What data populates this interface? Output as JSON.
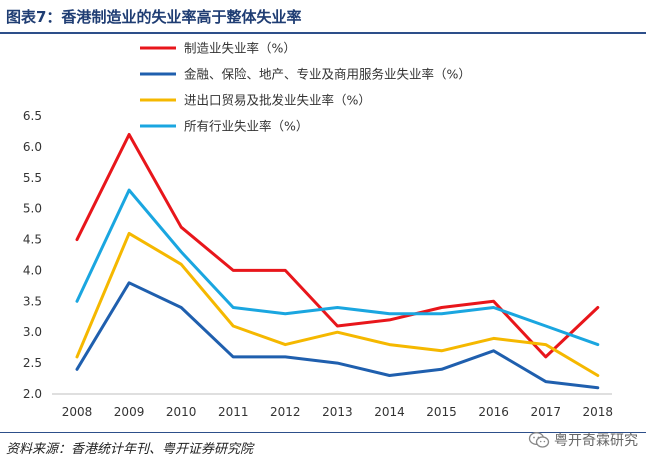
{
  "header": {
    "title": "图表7：香港制造业的失业率高于整体失业率"
  },
  "footer": {
    "source": "资料来源：香港统计年刊、粤开证券研究院"
  },
  "watermark": {
    "text": "粤开奇霖研究"
  },
  "chart_data": {
    "type": "line",
    "title": "",
    "xlabel": "",
    "ylabel": "",
    "ylim": [
      2.0,
      6.5
    ],
    "yticks": [
      "2.0",
      "2.5",
      "3.0",
      "3.5",
      "4.0",
      "4.5",
      "5.0",
      "5.5",
      "6.0",
      "6.5"
    ],
    "categories": [
      "2008",
      "2009",
      "2010",
      "2011",
      "2012",
      "2013",
      "2014",
      "2015",
      "2016",
      "2017",
      "2018"
    ],
    "legend_position": "top-right",
    "grid": false,
    "series": [
      {
        "name": "制造业失业率（%）",
        "color": "#e8161b",
        "values": [
          4.5,
          6.2,
          4.7,
          4.0,
          4.0,
          3.1,
          3.2,
          3.4,
          3.5,
          2.6,
          3.4
        ]
      },
      {
        "name": "金融、保险、地产、专业及商用服务业失业率（%）",
        "color": "#1f5fae",
        "values": [
          2.4,
          3.8,
          3.4,
          2.6,
          2.6,
          2.5,
          2.3,
          2.4,
          2.7,
          2.2,
          2.1
        ]
      },
      {
        "name": "进出口贸易及批发业失业率（%）",
        "color": "#f5b800",
        "values": [
          2.6,
          4.6,
          4.1,
          3.1,
          2.8,
          3.0,
          2.8,
          2.7,
          2.9,
          2.8,
          2.3
        ]
      },
      {
        "name": "所有行业失业率（%）",
        "color": "#1aa6e0",
        "values": [
          3.5,
          5.3,
          4.3,
          3.4,
          3.3,
          3.4,
          3.3,
          3.3,
          3.4,
          3.1,
          2.8
        ]
      }
    ]
  }
}
